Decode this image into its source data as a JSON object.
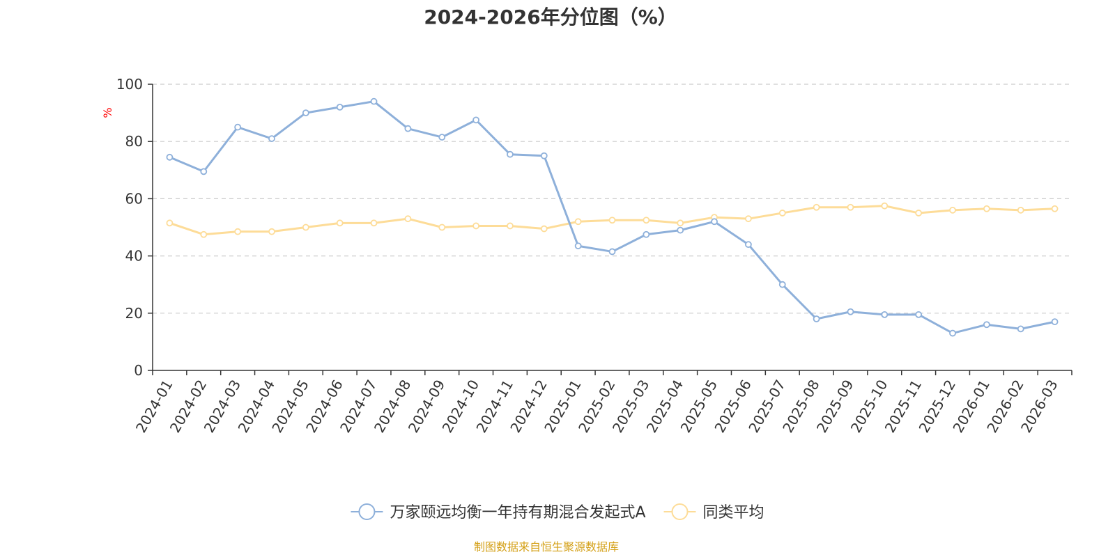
{
  "chart_data": {
    "type": "line",
    "title": "2024-2026年分位图（%）",
    "y_unit": "%",
    "ylim": [
      0,
      100
    ],
    "y_ticks": [
      0,
      20,
      40,
      60,
      80,
      100
    ],
    "grid": true,
    "legend_position": "bottom",
    "categories": [
      "2024-01",
      "2024-02",
      "2024-03",
      "2024-04",
      "2024-05",
      "2024-06",
      "2024-07",
      "2024-08",
      "2024-09",
      "2024-10",
      "2024-11",
      "2024-12",
      "2025-01",
      "2025-02",
      "2025-03",
      "2025-04",
      "2025-05",
      "2025-06",
      "2025-07",
      "2025-08",
      "2025-09",
      "2025-10",
      "2025-11",
      "2025-12",
      "2026-01",
      "2026-02",
      "2026-03"
    ],
    "series": [
      {
        "name": "万家颐远均衡一年持有期混合发起式A",
        "color": "#8eb0da",
        "values": [
          74.5,
          69.5,
          85,
          81,
          90,
          92,
          94,
          84.5,
          81.5,
          87.5,
          75.5,
          75,
          43.5,
          41.5,
          47.5,
          49,
          52,
          44,
          30,
          18,
          20.5,
          19.5,
          19.5,
          13,
          16,
          14.5,
          17
        ]
      },
      {
        "name": "同类平均",
        "color": "#fddc98",
        "values": [
          51.5,
          47.5,
          48.5,
          48.5,
          50,
          51.5,
          51.5,
          53,
          50,
          50.5,
          50.5,
          49.5,
          52,
          52.5,
          52.5,
          51.5,
          53.5,
          53,
          55,
          57,
          57,
          57.5,
          55,
          56,
          56.5,
          56,
          56.5
        ]
      }
    ]
  },
  "source_note": "制图数据来自恒生聚源数据库",
  "colors": {
    "axis": "#333333",
    "grid": "#cccccc",
    "source_text": "#d4a017",
    "unit_text": "#ff0000"
  }
}
